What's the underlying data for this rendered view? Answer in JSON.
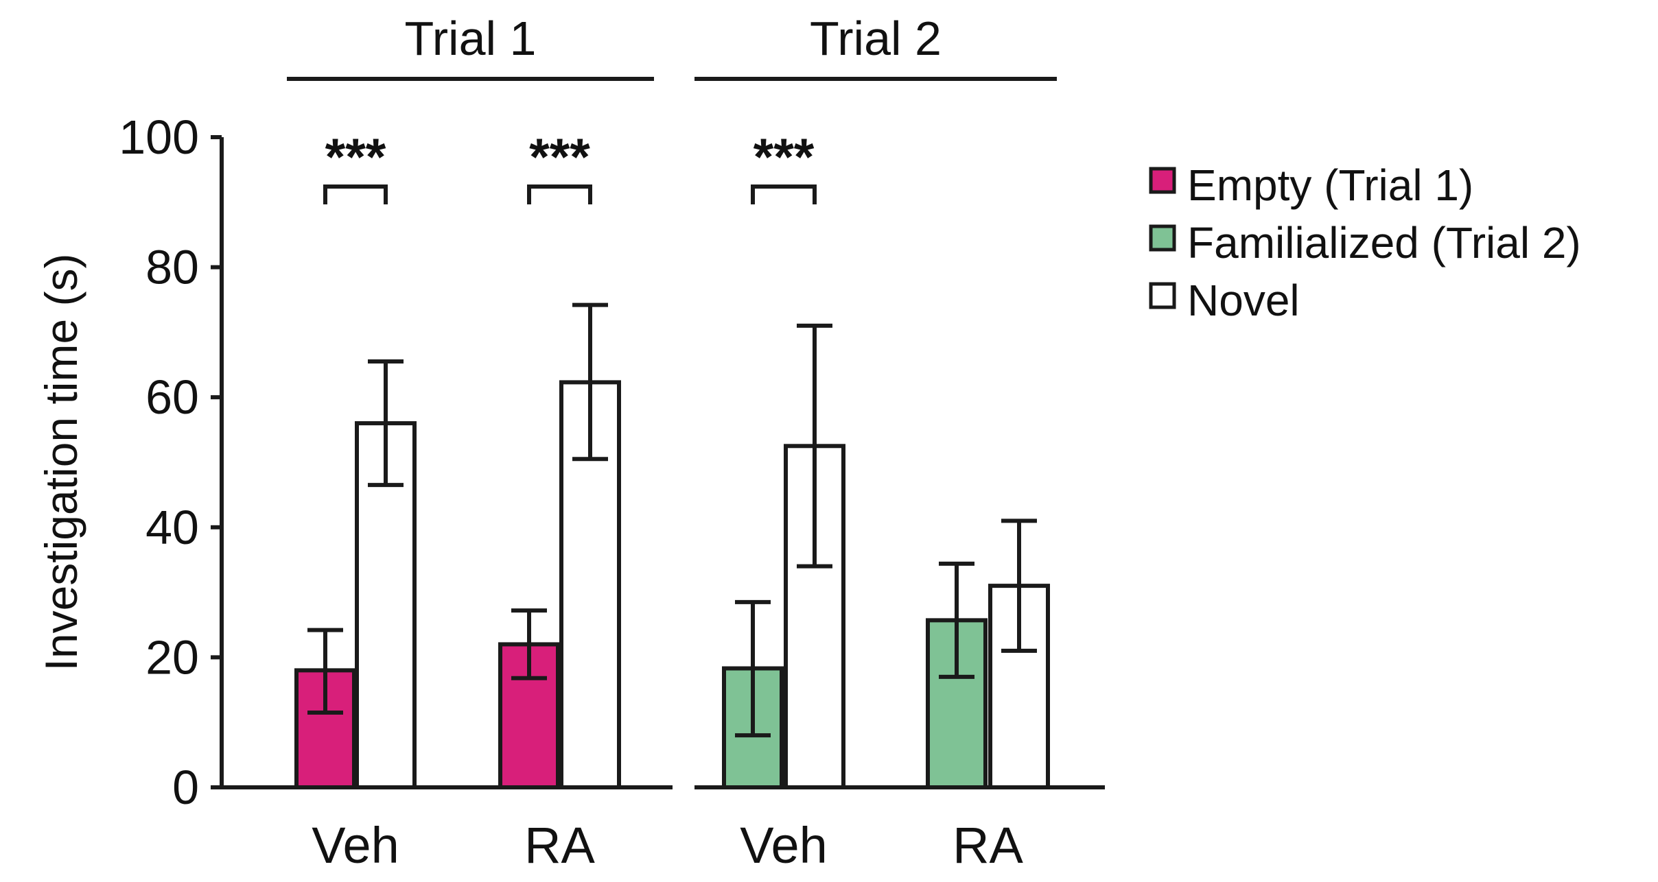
{
  "chart_data": {
    "type": "bar",
    "ylabel": "Investigation time (s)",
    "ylim": [
      0,
      100
    ],
    "yticks": [
      0,
      20,
      40,
      60,
      80,
      100
    ],
    "grid": false,
    "legend_position": "right",
    "legend": [
      {
        "label": "Empty (Trial 1)",
        "color": "#d81f7a"
      },
      {
        "label": "Familialized (Trial 2)",
        "color": "#7fc295"
      },
      {
        "label": "Novel",
        "color": "#ffffff"
      }
    ],
    "panels": [
      {
        "title": "Trial 1",
        "groups": [
          {
            "label": "Veh",
            "bars": [
              {
                "series": "Empty (Trial 1)",
                "value": 18,
                "err_low": 11.5,
                "err_high": 24.2
              },
              {
                "series": "Novel",
                "value": 56,
                "err_low": 46.5,
                "err_high": 65.5
              }
            ],
            "significance": "***"
          },
          {
            "label": "RA",
            "bars": [
              {
                "series": "Empty (Trial 1)",
                "value": 22,
                "err_low": 16.8,
                "err_high": 27.2
              },
              {
                "series": "Novel",
                "value": 62.3,
                "err_low": 50.5,
                "err_high": 74.2
              }
            ],
            "significance": "***"
          }
        ]
      },
      {
        "title": "Trial 2",
        "groups": [
          {
            "label": "Veh",
            "bars": [
              {
                "series": "Familialized (Trial 2)",
                "value": 18.3,
                "err_low": 8,
                "err_high": 28.5
              },
              {
                "series": "Novel",
                "value": 52.5,
                "err_low": 34,
                "err_high": 71
              }
            ],
            "significance": "***"
          },
          {
            "label": "RA",
            "bars": [
              {
                "series": "Familialized (Trial 2)",
                "value": 25.7,
                "err_low": 17,
                "err_high": 34.4
              },
              {
                "series": "Novel",
                "value": 31,
                "err_low": 21,
                "err_high": 41
              }
            ],
            "significance": ""
          }
        ]
      }
    ]
  }
}
